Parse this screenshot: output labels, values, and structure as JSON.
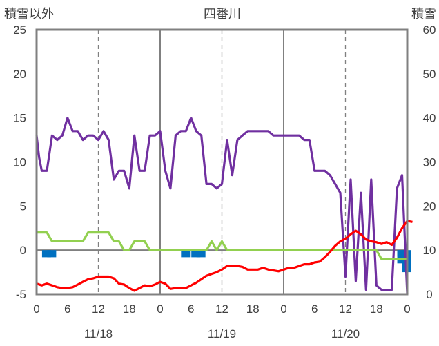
{
  "chart_data": {
    "type": "line",
    "title": "四番川",
    "y_left_label": "積雪以外",
    "y_right_label": "積雪",
    "y_left_range": [
      -5,
      25
    ],
    "y_left_ticks": [
      "25",
      "20",
      "15",
      "10",
      "5",
      "0",
      "-5"
    ],
    "y_right_range": [
      0,
      60
    ],
    "y_right_ticks": [
      "60",
      "50",
      "40",
      "30",
      "20",
      "10",
      "0"
    ],
    "x_range_hours": [
      0,
      72
    ],
    "x_hour_ticks": [
      "0",
      "6",
      "12",
      "18",
      "0",
      "6",
      "12",
      "18",
      "0",
      "6",
      "12",
      "18",
      "0"
    ],
    "x_date_labels": [
      "11/18",
      "11/19",
      "11/20"
    ],
    "grid": "dashed vertical lines at 12h, solid at day boundaries",
    "colors": {
      "purple": "#7030A0",
      "green": "#92D050",
      "red": "#FF0000",
      "blue": "#0070C0",
      "axis": "#808080"
    },
    "series": [
      {
        "axis": "left",
        "color": "purple",
        "points": [
          [
            0,
            13
          ],
          [
            0.5,
            10.5
          ],
          [
            1,
            9
          ],
          [
            2,
            9
          ],
          [
            3,
            13
          ],
          [
            4,
            12.5
          ],
          [
            5,
            13
          ],
          [
            6,
            15
          ],
          [
            7,
            13.5
          ],
          [
            8,
            13.5
          ],
          [
            9,
            12.5
          ],
          [
            10,
            13
          ],
          [
            11,
            13
          ],
          [
            12,
            12.5
          ],
          [
            13,
            13.5
          ],
          [
            14,
            12.5
          ],
          [
            15,
            8
          ],
          [
            16,
            9
          ],
          [
            17,
            9
          ],
          [
            18,
            7
          ],
          [
            19,
            13
          ],
          [
            20,
            9
          ],
          [
            21,
            9
          ],
          [
            22,
            13
          ],
          [
            23,
            13
          ],
          [
            24,
            13.5
          ],
          [
            25,
            9
          ],
          [
            26,
            7
          ],
          [
            27,
            13
          ],
          [
            28,
            13.5
          ],
          [
            29,
            13.5
          ],
          [
            30,
            15
          ],
          [
            31,
            13.5
          ],
          [
            32,
            13
          ],
          [
            33,
            7.5
          ],
          [
            34,
            7.5
          ],
          [
            35,
            7
          ],
          [
            36,
            7.5
          ],
          [
            37,
            12.5
          ],
          [
            38,
            8.5
          ],
          [
            39,
            12.5
          ],
          [
            40,
            13
          ],
          [
            41,
            13.5
          ],
          [
            42,
            13.5
          ],
          [
            43,
            13.5
          ],
          [
            44,
            13.5
          ],
          [
            45,
            13.5
          ],
          [
            46,
            13
          ],
          [
            47,
            13
          ],
          [
            48,
            13
          ],
          [
            49,
            13
          ],
          [
            50,
            13
          ],
          [
            51,
            13
          ],
          [
            52,
            12.5
          ],
          [
            53,
            12.5
          ],
          [
            54,
            9
          ],
          [
            55,
            9
          ],
          [
            56,
            9
          ],
          [
            57,
            8.5
          ],
          [
            58,
            7.5
          ],
          [
            59,
            6.5
          ],
          [
            60,
            -3
          ],
          [
            61,
            8
          ],
          [
            62,
            -3.5
          ],
          [
            63,
            6.5
          ],
          [
            64,
            -4.5
          ],
          [
            65,
            8
          ],
          [
            66,
            -4
          ],
          [
            67,
            -4.5
          ],
          [
            68,
            -4.5
          ],
          [
            69,
            -4.5
          ],
          [
            70,
            7
          ],
          [
            71,
            8.5
          ],
          [
            72,
            -5
          ]
        ]
      },
      {
        "axis": "left",
        "color": "green",
        "points": [
          [
            0,
            2
          ],
          [
            1,
            2
          ],
          [
            2,
            2
          ],
          [
            3,
            1
          ],
          [
            4,
            1
          ],
          [
            5,
            1
          ],
          [
            6,
            1
          ],
          [
            7,
            1
          ],
          [
            8,
            1
          ],
          [
            9,
            1
          ],
          [
            10,
            2
          ],
          [
            11,
            2
          ],
          [
            12,
            2
          ],
          [
            13,
            2
          ],
          [
            14,
            2
          ],
          [
            15,
            1
          ],
          [
            16,
            1
          ],
          [
            17,
            0
          ],
          [
            18,
            0
          ],
          [
            19,
            1
          ],
          [
            20,
            1
          ],
          [
            21,
            1
          ],
          [
            22,
            0
          ],
          [
            23,
            0
          ],
          [
            24,
            0
          ],
          [
            25,
            0
          ],
          [
            26,
            0
          ],
          [
            27,
            0
          ],
          [
            28,
            0
          ],
          [
            29,
            0
          ],
          [
            30,
            0
          ],
          [
            31,
            0
          ],
          [
            32,
            0
          ],
          [
            33,
            0
          ],
          [
            34,
            1
          ],
          [
            35,
            0
          ],
          [
            36,
            1
          ],
          [
            37,
            0
          ],
          [
            38,
            0
          ],
          [
            48,
            0
          ],
          [
            60,
            0
          ],
          [
            66,
            0
          ],
          [
            67,
            -1
          ],
          [
            68,
            -1
          ],
          [
            69,
            -1
          ],
          [
            70,
            -1
          ],
          [
            71,
            -1
          ],
          [
            72,
            -1
          ]
        ]
      },
      {
        "axis": "left",
        "color": "red",
        "points": [
          [
            0,
            -3.8
          ],
          [
            1,
            -4
          ],
          [
            2,
            -3.8
          ],
          [
            3,
            -4
          ],
          [
            4,
            -4.2
          ],
          [
            5,
            -4.3
          ],
          [
            6,
            -4.3
          ],
          [
            7,
            -4.2
          ],
          [
            8,
            -3.9
          ],
          [
            9,
            -3.6
          ],
          [
            10,
            -3.3
          ],
          [
            11,
            -3.2
          ],
          [
            12,
            -3
          ],
          [
            13,
            -3
          ],
          [
            14,
            -3
          ],
          [
            15,
            -3.2
          ],
          [
            16,
            -3.8
          ],
          [
            17,
            -3.9
          ],
          [
            18,
            -4.3
          ],
          [
            19,
            -4.6
          ],
          [
            20,
            -4.3
          ],
          [
            21,
            -4
          ],
          [
            22,
            -4.1
          ],
          [
            23,
            -3.9
          ],
          [
            24,
            -3.6
          ],
          [
            25,
            -3.8
          ],
          [
            26,
            -4.4
          ],
          [
            27,
            -4.3
          ],
          [
            28,
            -4.3
          ],
          [
            29,
            -4.3
          ],
          [
            30,
            -4
          ],
          [
            31,
            -3.7
          ],
          [
            32,
            -3.3
          ],
          [
            33,
            -2.9
          ],
          [
            34,
            -2.7
          ],
          [
            35,
            -2.5
          ],
          [
            36,
            -2.2
          ],
          [
            37,
            -1.8
          ],
          [
            38,
            -1.8
          ],
          [
            39,
            -1.8
          ],
          [
            40,
            -1.9
          ],
          [
            41,
            -2.2
          ],
          [
            42,
            -2.2
          ],
          [
            43,
            -2.2
          ],
          [
            44,
            -2
          ],
          [
            45,
            -2.2
          ],
          [
            46,
            -2.3
          ],
          [
            47,
            -2.4
          ],
          [
            48,
            -2.2
          ],
          [
            49,
            -2
          ],
          [
            50,
            -2
          ],
          [
            51,
            -1.8
          ],
          [
            52,
            -1.6
          ],
          [
            53,
            -1.6
          ],
          [
            54,
            -1.4
          ],
          [
            55,
            -1.3
          ],
          [
            56,
            -0.8
          ],
          [
            57,
            -0.2
          ],
          [
            58,
            0.5
          ],
          [
            59,
            1
          ],
          [
            60,
            1.3
          ],
          [
            61,
            1.8
          ],
          [
            62,
            2.2
          ],
          [
            63,
            1.8
          ],
          [
            64,
            1.2
          ],
          [
            65,
            1
          ],
          [
            66,
            0.9
          ],
          [
            67,
            0.7
          ],
          [
            68,
            0.9
          ],
          [
            69,
            0.6
          ],
          [
            70,
            1.4
          ],
          [
            71,
            2.5
          ],
          [
            72,
            3.3
          ],
          [
            73,
            3.2
          ]
        ]
      },
      {
        "axis": "left",
        "color": "blue",
        "type": "bar",
        "points": [
          [
            2,
            -0.8
          ],
          [
            3,
            -0.8
          ],
          [
            29,
            -0.8
          ],
          [
            31,
            -0.8
          ],
          [
            32,
            -0.8
          ],
          [
            71,
            -0.7
          ],
          [
            71,
            -1.5
          ],
          [
            72,
            -2.5
          ]
        ]
      }
    ]
  }
}
